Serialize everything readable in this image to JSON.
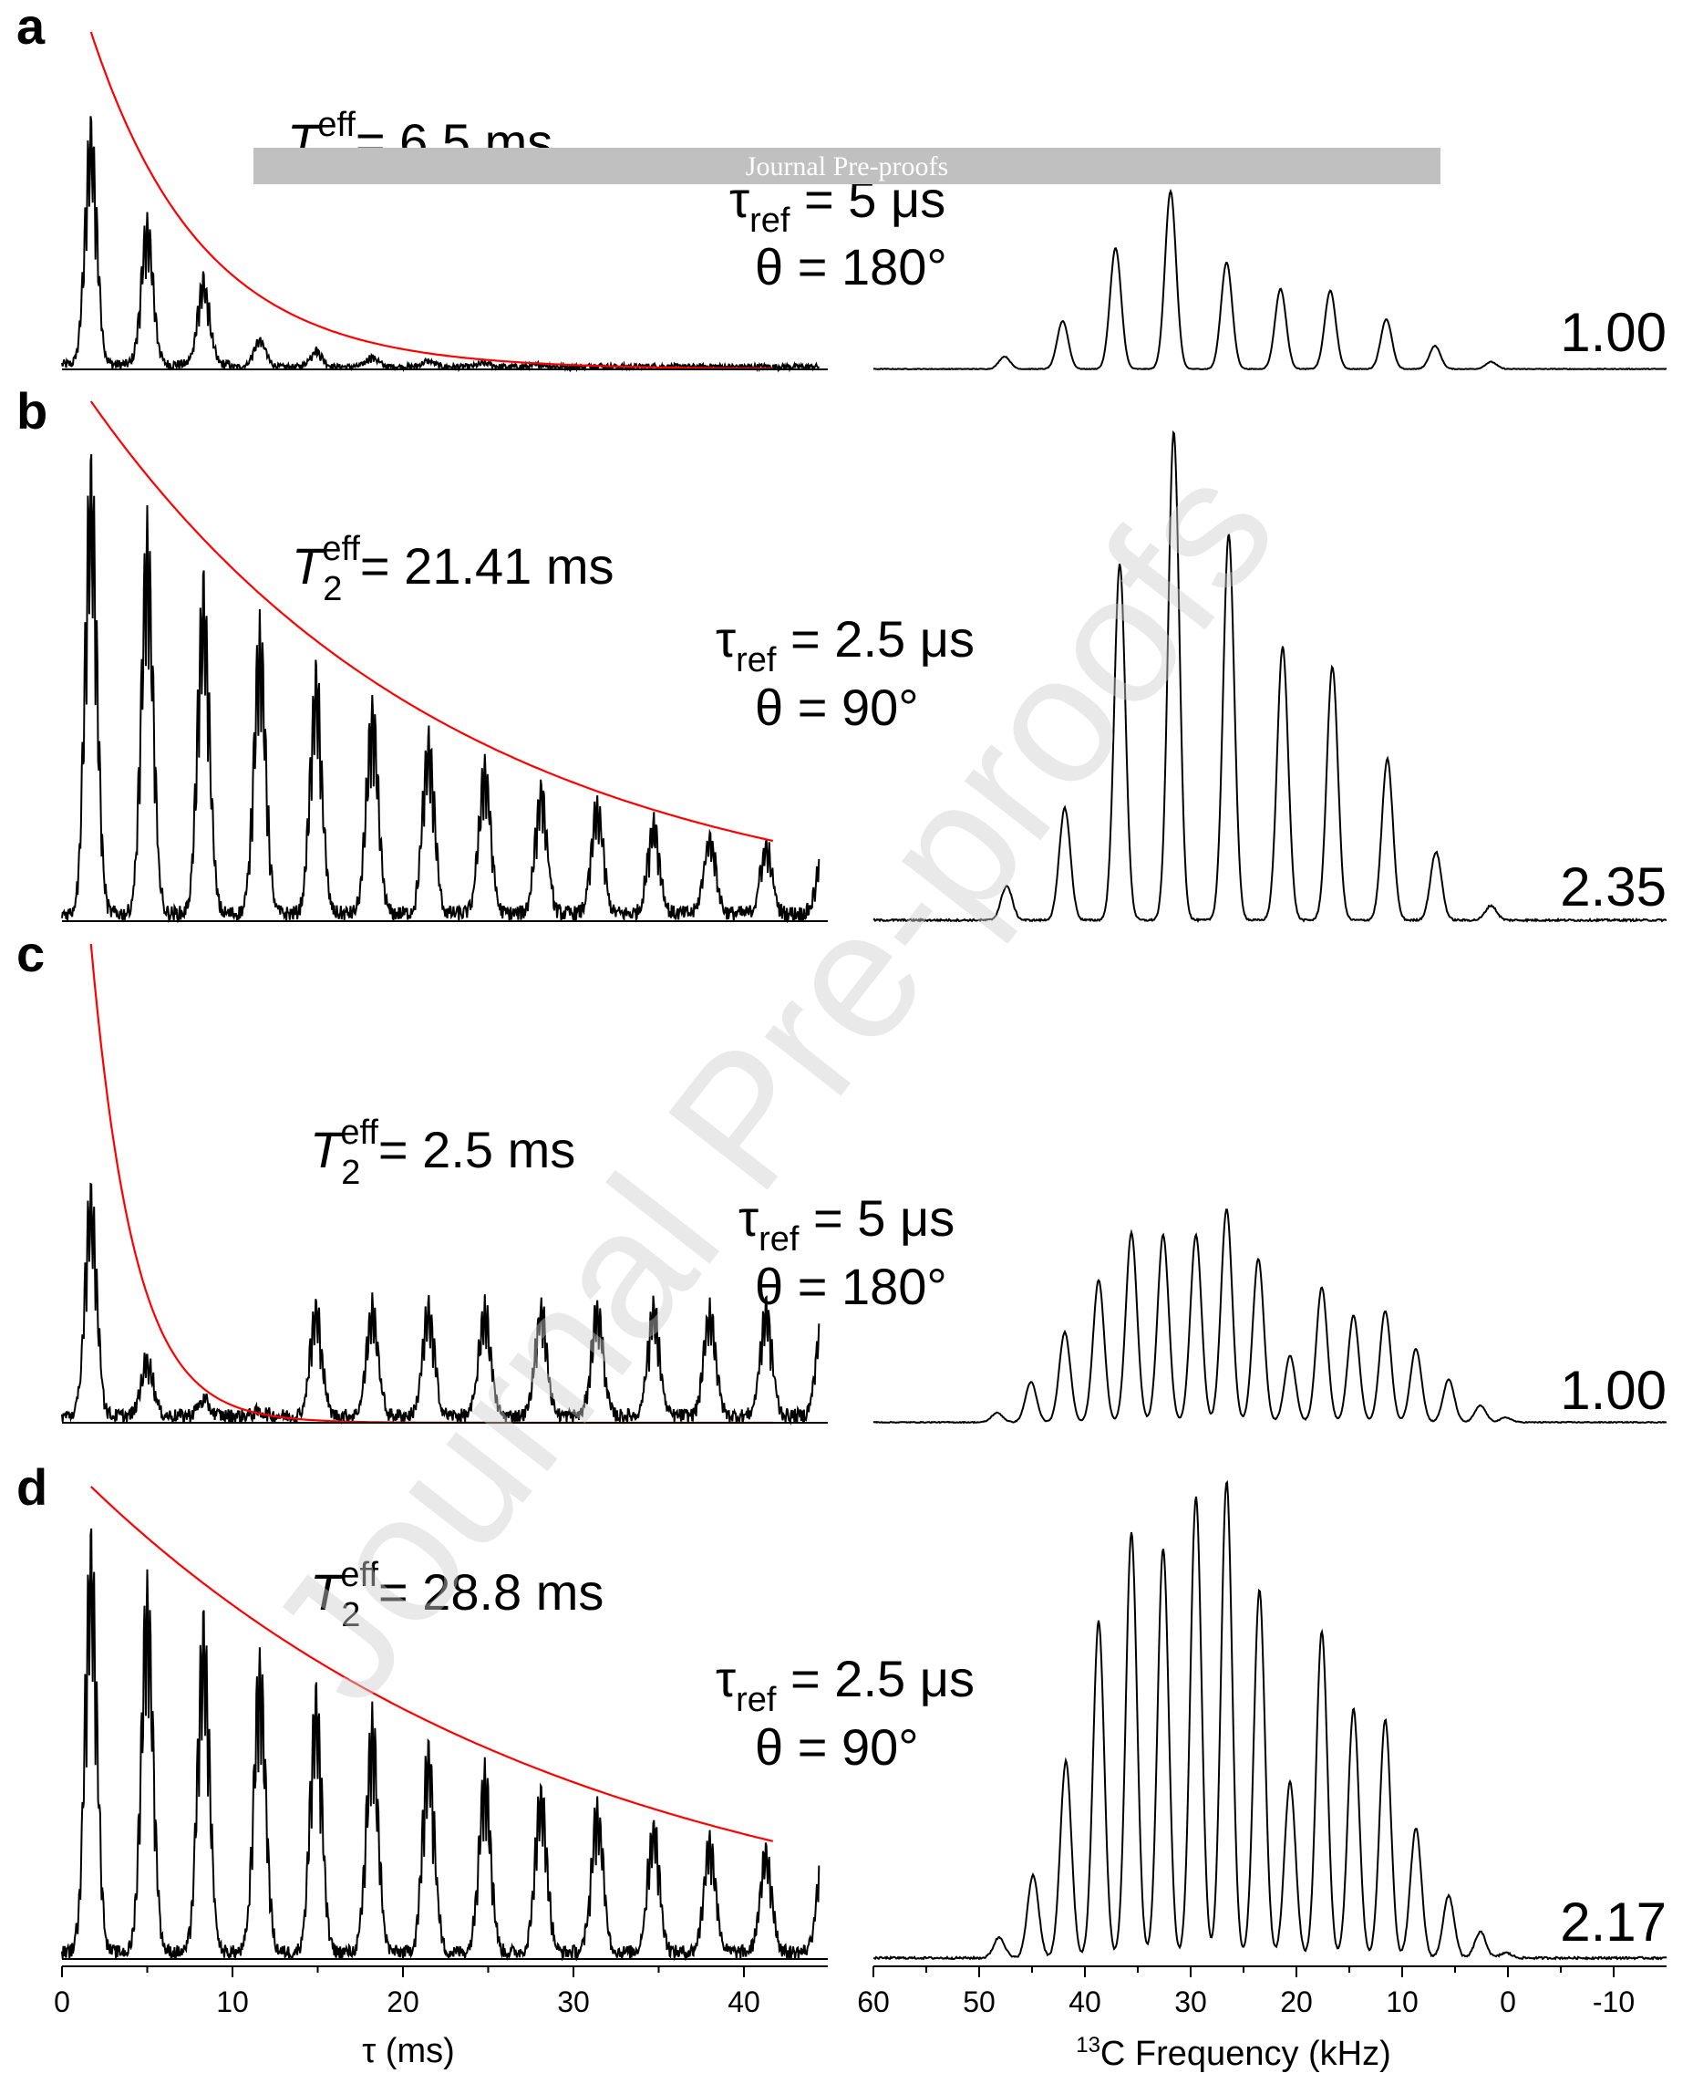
{
  "banner": {
    "text": "Journal Pre-proofs",
    "color": "#c0c0c0"
  },
  "watermark": {
    "text": "Journal Pre-proofs"
  },
  "chart_data": [
    {
      "type": "line",
      "panel": "a",
      "description_left": "FID decay (echo train)",
      "x_axis_label": "τ (ms)",
      "xlim": [
        0,
        45
      ],
      "x_ticks": [
        0,
        10,
        20,
        30,
        40
      ],
      "annotation": {
        "T2eff_text": "= 6.5 ms",
        "tref_text": "= 5 μs",
        "theta_text": "θ = 180°",
        "T2eff_ms": 6.5
      },
      "echo_spacing_ms": 3.3,
      "echo_count": 13,
      "fit_color": "#ff0000",
      "spectrum": {
        "x_axis_label": "13C Frequency (kHz)",
        "xlim": [
          60,
          -15
        ],
        "peaks_khz": [
          47.6,
          42.1,
          37.1,
          31.9,
          26.6,
          21.5,
          16.8,
          11.5,
          6.9,
          1.6
        ],
        "peak_heights": [
          0.07,
          0.27,
          0.68,
          1.0,
          0.6,
          0.45,
          0.44,
          0.28,
          0.13,
          0.04
        ],
        "scale_label": "1.00"
      }
    },
    {
      "type": "line",
      "panel": "b",
      "annotation": {
        "T2eff_text": "= 21.41 ms",
        "tref_text": "= 2.5 μs",
        "theta_text": "θ = 90°",
        "T2eff_ms": 21.41
      },
      "echo_spacing_ms": 3.3,
      "echo_count": 13,
      "fit_color": "#ff0000",
      "spectrum": {
        "peaks_khz": [
          47.4,
          41.9,
          36.7,
          31.6,
          26.4,
          21.3,
          16.6,
          11.4,
          6.8,
          1.6
        ],
        "peak_heights": [
          0.07,
          0.23,
          0.73,
          1.0,
          0.79,
          0.56,
          0.52,
          0.33,
          0.14,
          0.03
        ],
        "scale_label": "2.35"
      }
    },
    {
      "type": "line",
      "panel": "c",
      "annotation": {
        "T2eff_text": "= 2.5 ms",
        "tref_text": "= 5 μs",
        "theta_text": "θ = 180°",
        "T2eff_ms": 2.5
      },
      "echo_spacing_ms": 3.3,
      "echo_count": 13,
      "fit_color": "#ff0000",
      "spectrum": {
        "peaks_khz": [
          48.3,
          45.1,
          41.9,
          38.7,
          35.6,
          32.6,
          29.5,
          26.6,
          23.6,
          20.6,
          17.6,
          14.6,
          11.6,
          8.7,
          5.6,
          2.6,
          0.2
        ],
        "peak_heights": [
          0.04,
          0.17,
          0.38,
          0.6,
          0.8,
          0.79,
          0.79,
          0.9,
          0.69,
          0.28,
          0.57,
          0.45,
          0.47,
          0.31,
          0.18,
          0.07,
          0.02
        ],
        "scale_label": "1.00"
      }
    },
    {
      "type": "line",
      "panel": "d",
      "annotation": {
        "T2eff_text": "= 28.8 ms",
        "tref_text": "= 2.5 μs",
        "theta_text": "θ = 90°",
        "T2eff_ms": 28.8
      },
      "x_axis_label": "τ (ms)",
      "xlim": [
        0,
        45
      ],
      "x_ticks": [
        0,
        10,
        20,
        30,
        40
      ],
      "echo_spacing_ms": 3.3,
      "echo_count": 13,
      "fit_color": "#ff0000",
      "spectrum": {
        "x_axis_label": "13C Frequency (kHz)",
        "xlim": [
          60,
          -15
        ],
        "x_ticks": [
          60,
          50,
          40,
          30,
          20,
          10,
          0,
          -10
        ],
        "peaks_khz": [
          48.1,
          44.9,
          41.8,
          38.7,
          35.6,
          32.6,
          29.5,
          26.6,
          23.5,
          20.6,
          17.6,
          14.6,
          11.6,
          8.7,
          5.6,
          2.6,
          0.2
        ],
        "peak_heights": [
          0.04,
          0.16,
          0.38,
          0.65,
          0.82,
          0.79,
          0.89,
          0.92,
          0.71,
          0.34,
          0.63,
          0.48,
          0.46,
          0.25,
          0.12,
          0.05,
          0.01
        ],
        "scale_label": "2.17"
      }
    }
  ],
  "axis_labels": {
    "left_x": "τ (ms)",
    "right_x_sup": "13",
    "right_x": "C Frequency (kHz)"
  },
  "sym": {
    "T": "T",
    "sub2": "2",
    "eff": "eff",
    "tau": "τ",
    "ref": "ref"
  }
}
